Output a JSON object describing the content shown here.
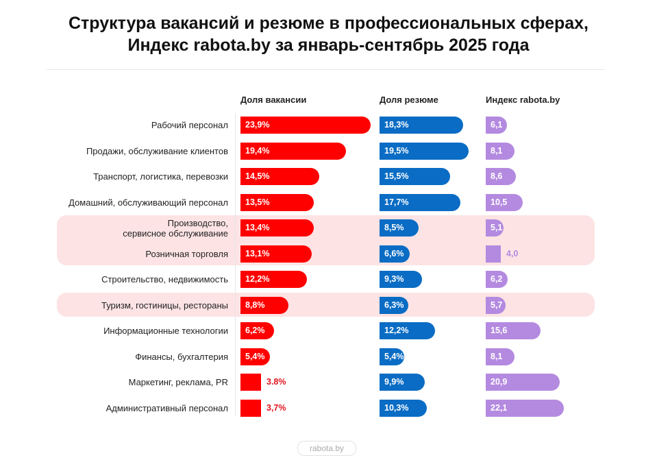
{
  "title_line1": "Структура вакансий и резюме в профессиональных сферах,",
  "title_line2": "Индекс rabota.by за январь-сентябрь 2025 года",
  "footer": "rabota.by",
  "colors": {
    "vacancies": "#ff0000",
    "resumes": "#0a6cc4",
    "index": "#b48ae0",
    "highlight": "#fde3e4"
  },
  "chart_data": {
    "type": "bar",
    "orientation": "horizontal",
    "categories": [
      "Рабочий персонал",
      "Продажи, обслуживание клиентов",
      "Транспорт, логистика, перевозки",
      "Домашний, обслуживающий персонал",
      "Производство,\nсервисное обслуживание",
      "Розничная торговля",
      "Строительство, недвижимость",
      "Туризм, гостиницы, рестораны",
      "Информационные технологии",
      "Финансы, бухгалтерия",
      "Маркетинг, реклама, PR",
      "Административный персонал"
    ],
    "highlighted_categories": [
      4,
      5,
      7
    ],
    "series": [
      {
        "name": "Доля вакансии",
        "values": [
          23.9,
          19.4,
          14.5,
          13.5,
          13.4,
          13.1,
          12.2,
          8.8,
          6.2,
          5.4,
          3.8,
          3.7
        ],
        "labels": [
          "23,9%",
          "19,4%",
          "14,5%",
          "13,5%",
          "13,4%",
          "13,1%",
          "12,2%",
          "8,8%",
          "6,2%",
          "5,4%",
          "3.8%",
          "3,7%"
        ]
      },
      {
        "name": "Доля резюме",
        "values": [
          18.3,
          19.5,
          15.5,
          17.7,
          8.5,
          6.6,
          9.3,
          6.3,
          12.2,
          5.4,
          9.9,
          10.3
        ],
        "labels": [
          "18,3%",
          "19,5%",
          "15,5%",
          "17,7%",
          "8,5%",
          "6,6%",
          "9,3%",
          "6,3%",
          "12,2%",
          "5,4%",
          "9,9%",
          "10,3%"
        ]
      },
      {
        "name": "Индекс rabota.by",
        "values": [
          6.1,
          8.1,
          8.6,
          10.5,
          5.1,
          4.0,
          6.2,
          5.7,
          15.6,
          8.1,
          20.9,
          22.1
        ],
        "labels": [
          "6,1",
          "8,1",
          "8,6",
          "10,5",
          "5,1",
          "4,0",
          "6,2",
          "5,7",
          "15,6",
          "8,1",
          "20,9",
          "22,1"
        ]
      }
    ]
  }
}
